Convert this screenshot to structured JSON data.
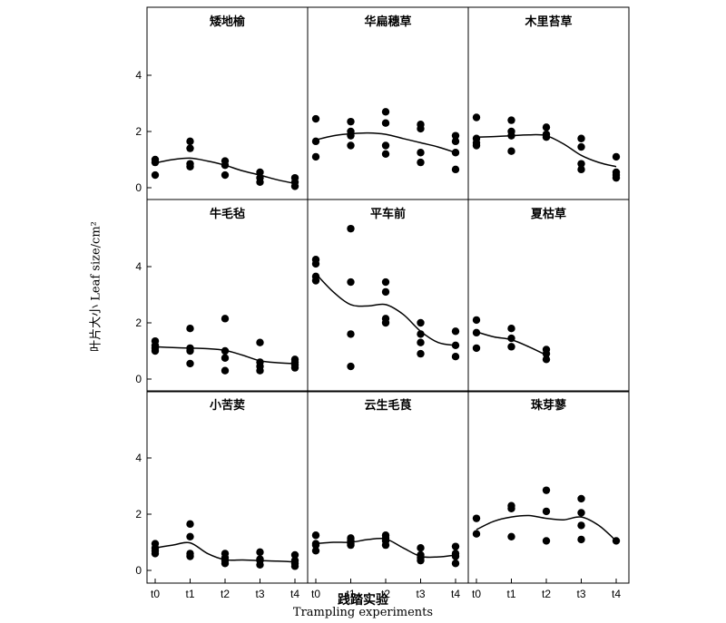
{
  "ylabel": "叶片大小 Leaf size/cm²",
  "xlabel_cn": "践踏实验",
  "xlabel_en": "Trampling experiments",
  "chart_data": {
    "type": "scatter",
    "layout": "3x3 small multiples",
    "categories": [
      "t0",
      "t1",
      "t2",
      "t3",
      "t4"
    ],
    "yticks": [
      0,
      2,
      4
    ],
    "ylim": [
      0,
      6
    ],
    "grid": false,
    "legend": "none",
    "panels": [
      {
        "title": "矮地榆",
        "points": [
          [
            0,
            1.0
          ],
          [
            0,
            0.9
          ],
          [
            0,
            0.45
          ],
          [
            1,
            1.65
          ],
          [
            1,
            1.4
          ],
          [
            1,
            0.85
          ],
          [
            1,
            0.75
          ],
          [
            2,
            0.95
          ],
          [
            2,
            0.8
          ],
          [
            2,
            0.45
          ],
          [
            3,
            0.55
          ],
          [
            3,
            0.35
          ],
          [
            3,
            0.2
          ],
          [
            4,
            0.35
          ],
          [
            4,
            0.2
          ],
          [
            4,
            0.05
          ]
        ],
        "curve": [
          [
            0,
            0.88
          ],
          [
            0.5,
            1.0
          ],
          [
            1,
            1.05
          ],
          [
            1.5,
            0.95
          ],
          [
            2,
            0.8
          ],
          [
            2.5,
            0.6
          ],
          [
            3,
            0.45
          ],
          [
            3.5,
            0.28
          ],
          [
            4,
            0.15
          ]
        ]
      },
      {
        "title": "华扁穗草",
        "points": [
          [
            0,
            2.45
          ],
          [
            0,
            1.65
          ],
          [
            0,
            1.1
          ],
          [
            1,
            2.35
          ],
          [
            1,
            2.0
          ],
          [
            1,
            1.85
          ],
          [
            1,
            1.5
          ],
          [
            2,
            2.7
          ],
          [
            2,
            2.3
          ],
          [
            2,
            1.5
          ],
          [
            2,
            1.2
          ],
          [
            3,
            2.25
          ],
          [
            3,
            2.1
          ],
          [
            3,
            1.25
          ],
          [
            3,
            0.9
          ],
          [
            4,
            1.85
          ],
          [
            4,
            1.65
          ],
          [
            4,
            1.25
          ],
          [
            4,
            0.65
          ]
        ],
        "curve": [
          [
            0,
            1.7
          ],
          [
            0.5,
            1.85
          ],
          [
            1,
            1.92
          ],
          [
            1.5,
            1.95
          ],
          [
            2,
            1.9
          ],
          [
            2.5,
            1.75
          ],
          [
            3,
            1.6
          ],
          [
            3.5,
            1.45
          ],
          [
            4,
            1.25
          ]
        ]
      },
      {
        "title": "木里苔草",
        "points": [
          [
            0,
            2.5
          ],
          [
            0,
            1.75
          ],
          [
            0,
            1.6
          ],
          [
            0,
            1.5
          ],
          [
            1,
            2.4
          ],
          [
            1,
            2.0
          ],
          [
            1,
            1.85
          ],
          [
            1,
            1.3
          ],
          [
            2,
            2.15
          ],
          [
            2,
            1.9
          ],
          [
            2,
            1.8
          ],
          [
            3,
            1.75
          ],
          [
            3,
            1.45
          ],
          [
            3,
            0.85
          ],
          [
            3,
            0.65
          ],
          [
            4,
            1.1
          ],
          [
            4,
            0.55
          ],
          [
            4,
            0.45
          ],
          [
            4,
            0.35
          ]
        ],
        "curve": [
          [
            0,
            1.8
          ],
          [
            0.5,
            1.82
          ],
          [
            1,
            1.85
          ],
          [
            1.5,
            1.88
          ],
          [
            2,
            1.85
          ],
          [
            2.5,
            1.55
          ],
          [
            3,
            1.15
          ],
          [
            3.5,
            0.9
          ],
          [
            4,
            0.75
          ]
        ]
      },
      {
        "title": "牛毛毡",
        "points": [
          [
            0,
            1.35
          ],
          [
            0,
            1.2
          ],
          [
            0,
            1.1
          ],
          [
            0,
            1.0
          ],
          [
            1,
            1.8
          ],
          [
            1,
            1.1
          ],
          [
            1,
            1.0
          ],
          [
            1,
            0.55
          ],
          [
            2,
            2.15
          ],
          [
            2,
            1.0
          ],
          [
            2,
            0.75
          ],
          [
            2,
            0.3
          ],
          [
            3,
            1.3
          ],
          [
            3,
            0.6
          ],
          [
            3,
            0.45
          ],
          [
            3,
            0.3
          ],
          [
            4,
            0.7
          ],
          [
            4,
            0.6
          ],
          [
            4,
            0.5
          ],
          [
            4,
            0.4
          ]
        ],
        "curve": [
          [
            0,
            1.15
          ],
          [
            0.5,
            1.12
          ],
          [
            1,
            1.1
          ],
          [
            1.5,
            1.08
          ],
          [
            2,
            1.02
          ],
          [
            2.5,
            0.85
          ],
          [
            3,
            0.65
          ],
          [
            3.5,
            0.58
          ],
          [
            4,
            0.55
          ]
        ]
      },
      {
        "title": "平车前",
        "points": [
          [
            0,
            4.25
          ],
          [
            0,
            4.1
          ],
          [
            0,
            3.65
          ],
          [
            0,
            3.5
          ],
          [
            1,
            5.35
          ],
          [
            1,
            3.45
          ],
          [
            1,
            1.6
          ],
          [
            1,
            0.45
          ],
          [
            2,
            3.45
          ],
          [
            2,
            3.1
          ],
          [
            2,
            2.15
          ],
          [
            2,
            2.0
          ],
          [
            3,
            2.0
          ],
          [
            3,
            1.6
          ],
          [
            3,
            1.3
          ],
          [
            3,
            0.9
          ],
          [
            4,
            1.7
          ],
          [
            4,
            1.2
          ],
          [
            4,
            0.8
          ]
        ],
        "curve": [
          [
            0,
            3.75
          ],
          [
            0.5,
            3.1
          ],
          [
            1,
            2.65
          ],
          [
            1.5,
            2.6
          ],
          [
            2,
            2.65
          ],
          [
            2.5,
            2.3
          ],
          [
            3,
            1.7
          ],
          [
            3.5,
            1.3
          ],
          [
            4,
            1.2
          ]
        ]
      },
      {
        "title": "夏枯草",
        "points": [
          [
            0,
            2.1
          ],
          [
            0,
            1.65
          ],
          [
            0,
            1.1
          ],
          [
            1,
            1.8
          ],
          [
            1,
            1.45
          ],
          [
            1,
            1.15
          ],
          [
            2,
            1.05
          ],
          [
            2,
            0.9
          ],
          [
            2,
            0.7
          ]
        ],
        "curve": [
          [
            0,
            1.68
          ],
          [
            0.5,
            1.5
          ],
          [
            1,
            1.4
          ],
          [
            1.5,
            1.15
          ],
          [
            2,
            0.85
          ]
        ]
      },
      {
        "title": "小苦荬",
        "points": [
          [
            0,
            0.95
          ],
          [
            0,
            0.8
          ],
          [
            0,
            0.7
          ],
          [
            0,
            0.6
          ],
          [
            1,
            1.65
          ],
          [
            1,
            1.2
          ],
          [
            1,
            0.6
          ],
          [
            1,
            0.5
          ],
          [
            2,
            0.6
          ],
          [
            2,
            0.45
          ],
          [
            2,
            0.35
          ],
          [
            2,
            0.25
          ],
          [
            3,
            0.65
          ],
          [
            3,
            0.4
          ],
          [
            3,
            0.35
          ],
          [
            3,
            0.2
          ],
          [
            4,
            0.55
          ],
          [
            4,
            0.35
          ],
          [
            4,
            0.25
          ],
          [
            4,
            0.15
          ]
        ],
        "curve": [
          [
            0,
            0.8
          ],
          [
            0.5,
            0.9
          ],
          [
            1,
            0.98
          ],
          [
            1.5,
            0.6
          ],
          [
            2,
            0.38
          ],
          [
            2.5,
            0.37
          ],
          [
            3,
            0.35
          ],
          [
            3.5,
            0.33
          ],
          [
            4,
            0.3
          ]
        ]
      },
      {
        "title": "云生毛茛",
        "points": [
          [
            0,
            1.25
          ],
          [
            0,
            0.95
          ],
          [
            0,
            0.9
          ],
          [
            0,
            0.7
          ],
          [
            1,
            1.15
          ],
          [
            1,
            1.05
          ],
          [
            1,
            0.95
          ],
          [
            1,
            0.9
          ],
          [
            2,
            1.25
          ],
          [
            2,
            1.15
          ],
          [
            2,
            1.05
          ],
          [
            2,
            0.9
          ],
          [
            3,
            0.8
          ],
          [
            3,
            0.55
          ],
          [
            3,
            0.45
          ],
          [
            3,
            0.35
          ],
          [
            4,
            0.85
          ],
          [
            4,
            0.6
          ],
          [
            4,
            0.5
          ],
          [
            4,
            0.25
          ]
        ],
        "curve": [
          [
            0,
            0.95
          ],
          [
            0.5,
            1.0
          ],
          [
            1,
            1.0
          ],
          [
            1.5,
            1.1
          ],
          [
            2,
            1.12
          ],
          [
            2.5,
            0.8
          ],
          [
            3,
            0.5
          ],
          [
            3.5,
            0.48
          ],
          [
            4,
            0.55
          ]
        ]
      },
      {
        "title": "珠芽蓼",
        "points": [
          [
            0,
            1.85
          ],
          [
            0,
            1.3
          ],
          [
            1,
            2.3
          ],
          [
            1,
            2.2
          ],
          [
            1,
            1.2
          ],
          [
            2,
            2.85
          ],
          [
            2,
            2.1
          ],
          [
            2,
            1.05
          ],
          [
            3,
            2.55
          ],
          [
            3,
            2.05
          ],
          [
            3,
            1.6
          ],
          [
            3,
            1.1
          ],
          [
            4,
            1.05
          ]
        ],
        "curve": [
          [
            0,
            1.45
          ],
          [
            0.5,
            1.75
          ],
          [
            1,
            1.9
          ],
          [
            1.5,
            1.95
          ],
          [
            2,
            1.85
          ],
          [
            2.5,
            1.8
          ],
          [
            3,
            1.9
          ],
          [
            3.5,
            1.6
          ],
          [
            4,
            1.05
          ]
        ]
      }
    ]
  }
}
